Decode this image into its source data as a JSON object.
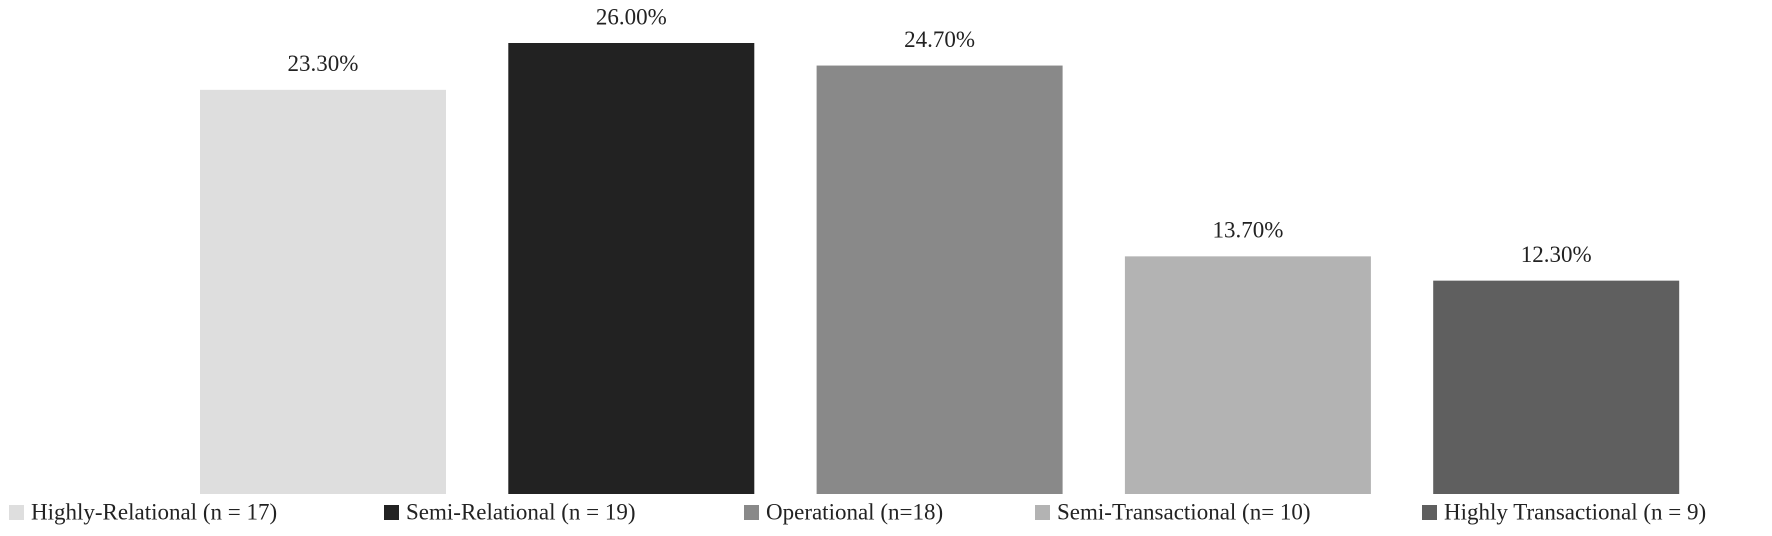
{
  "chart_data": {
    "type": "bar",
    "series": [
      {
        "name": "Highly-Relational (n = 17)",
        "color": "#dedede",
        "values": [
          23.3
        ],
        "value_labels": [
          "23.30%"
        ]
      },
      {
        "name": "Semi-Relational (n = 19)",
        "color": "#222222",
        "values": [
          26.0
        ],
        "value_labels": [
          "26.00%"
        ]
      },
      {
        "name": "Operational (n=18)",
        "color": "#898989",
        "values": [
          24.7
        ],
        "value_labels": [
          "24.70%"
        ]
      },
      {
        "name": "Semi-Transactional (n= 10)",
        "color": "#b3b3b3",
        "values": [
          13.7
        ],
        "value_labels": [
          "13.70%"
        ]
      },
      {
        "name": "Highly Transactional (n = 9)",
        "color": "#5f5f5f",
        "values": [
          12.3
        ],
        "value_labels": [
          "12.30%"
        ]
      }
    ]
  }
}
